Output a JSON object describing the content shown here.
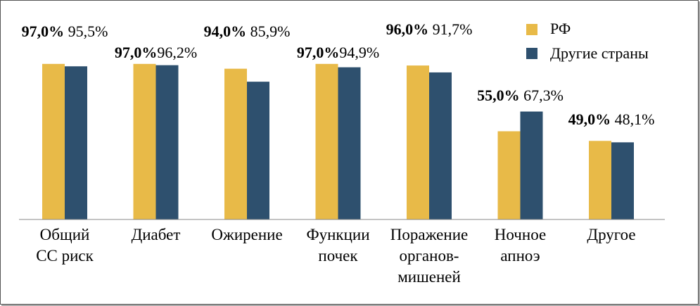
{
  "chart_data": {
    "type": "bar",
    "categories": [
      [
        "Общий",
        "СС риск"
      ],
      [
        "Диабет"
      ],
      [
        "Ожирение"
      ],
      [
        "Функции",
        "почек"
      ],
      [
        "Поражение",
        "органов-",
        "мишеней"
      ],
      [
        "Ночное",
        "апноэ"
      ],
      [
        "Другое"
      ]
    ],
    "series": [
      {
        "name": "РФ",
        "color": "#E8BA48",
        "values": [
          97.0,
          97.0,
          94.0,
          97.0,
          96.0,
          55.0,
          49.0
        ],
        "labels": [
          "97,0%",
          "97,0%",
          "94,0%",
          "97,0%",
          "96,0%",
          "55,0%",
          "49,0%"
        ]
      },
      {
        "name": "Другие страны",
        "color": "#2E506E",
        "values": [
          95.5,
          96.2,
          85.9,
          94.9,
          91.7,
          67.3,
          48.1
        ],
        "labels": [
          "95,5%",
          "96,2%",
          "85,9%",
          "94,9%",
          "91,7%",
          "67,3%",
          "48,1%"
        ]
      }
    ],
    "ylim": [
      0,
      100
    ],
    "grid": false,
    "legend_position": "top-right",
    "title": "",
    "xlabel": "",
    "ylabel": ""
  }
}
